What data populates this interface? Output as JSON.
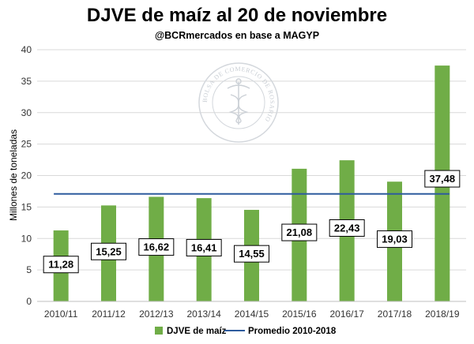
{
  "chart_data": {
    "type": "bar",
    "title": "DJVE de maíz al 20 de noviembre",
    "subtitle": "@BCRmercados  en base a MAGYP",
    "ylabel": "Millones de toneladas",
    "xlabel": "",
    "ylim": [
      0,
      40
    ],
    "yticks": [
      0,
      5,
      10,
      15,
      20,
      25,
      30,
      35,
      40
    ],
    "grid": true,
    "legend_position": "bottom",
    "categories": [
      "2010/11",
      "2011/12",
      "2012/13",
      "2013/14",
      "2014/15",
      "2015/16",
      "2016/17",
      "2017/18",
      "2018/19"
    ],
    "series": [
      {
        "name": "DJVE de maíz",
        "type": "bar",
        "color": "#70ad47",
        "values": [
          11.28,
          15.25,
          16.62,
          16.41,
          14.55,
          21.08,
          22.43,
          19.03,
          37.48
        ],
        "labels": [
          "11,28",
          "15,25",
          "16,62",
          "16,41",
          "14,55",
          "21,08",
          "22,43",
          "19,03",
          "37,48"
        ]
      },
      {
        "name": "Promedio 2010-2018",
        "type": "line",
        "color": "#2e5c9e",
        "value": 17.08
      }
    ]
  },
  "watermark": {
    "text": "BOLSA DE COMERCIO DE ROSARIO",
    "icon": "caduceus-seal-icon"
  }
}
